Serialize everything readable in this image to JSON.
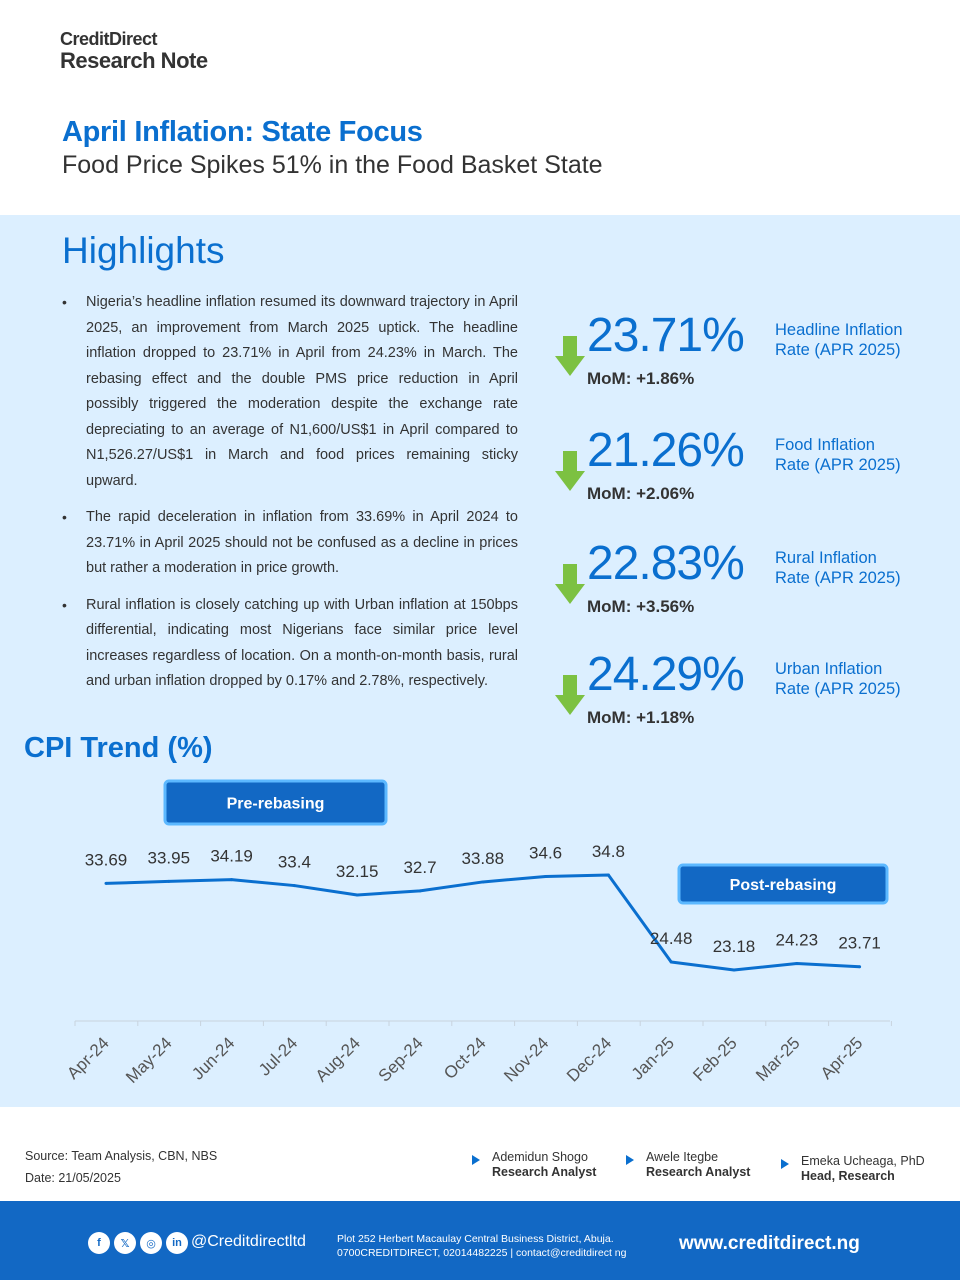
{
  "brand": {
    "line1": "CreditDirect",
    "line2": "Research Note"
  },
  "title": "April Inflation: State Focus",
  "subtitle": "Food Price Spikes 51% in the Food Basket State",
  "highlights": {
    "heading": "Highlights",
    "bullet_symbol": "•",
    "bullets": [
      "Nigeria’s headline inflation resumed its downward trajectory in April 2025, an improvement from March 2025 uptick. The headline inflation dropped to 23.71% in April from 24.23% in March. The rebasing effect and the double PMS price reduction in April possibly triggered the moderation despite the exchange rate depreciating to an average of N1,600/US$1 in April compared to N1,526.27/US$1 in March and food prices remaining sticky upward.",
      "The rapid deceleration in inflation from 33.69% in April 2024 to 23.71% in April 2025 should not be confused as a decline in prices but rather a moderation in price growth.",
      "Rural inflation is closely catching up with Urban inflation at 150bps differential, indicating most Nigerians face similar price level increases regardless of location. On a month-on-month basis, rural and urban inflation dropped by 0.17% and 2.78%, respectively."
    ]
  },
  "stats": [
    {
      "value": "23.71%",
      "mom": "MoM: +1.86%",
      "label_line1": "Headline Inflation",
      "label_line2": "Rate (APR 2025)",
      "direction": "down",
      "arrow_color": "#7cc142"
    },
    {
      "value": "21.26%",
      "mom": "MoM: +2.06%",
      "label_line1": "Food Inflation",
      "label_line2": "Rate (APR 2025)",
      "direction": "down",
      "arrow_color": "#7cc142"
    },
    {
      "value": "22.83%",
      "mom": "MoM: +3.56%",
      "label_line1": "Rural Inflation",
      "label_line2": "Rate (APR 2025)",
      "direction": "down",
      "arrow_color": "#7cc142"
    },
    {
      "value": "24.29%",
      "mom": "MoM: +1.18%",
      "label_line1": "Urban Inflation",
      "label_line2": "Rate (APR 2025)",
      "direction": "down",
      "arrow_color": "#7cc142"
    }
  ],
  "cpi_title": "CPI Trend (%)",
  "chart_data": {
    "type": "line",
    "title": "CPI Trend (%)",
    "categories": [
      "Apr-24",
      "May-24",
      "Jun-24",
      "Jul-24",
      "Aug-24",
      "Sep-24",
      "Oct-24",
      "Nov-24",
      "Dec-24",
      "Jan-25",
      "Feb-25",
      "Mar-25",
      "Apr-25"
    ],
    "series": [
      {
        "values": [
          33.69,
          33.95,
          34.19,
          33.4,
          32.15,
          32.7,
          33.88,
          34.6,
          34.8,
          24.48,
          23.18,
          24.23,
          23.71
        ]
      }
    ],
    "data_labels": [
      "33.69",
      "33.95",
      "34.19",
      "33.4",
      "32.15",
      "32.7",
      "33.88",
      "34.6",
      "34.8",
      "24.48",
      "23.18",
      "24.23",
      "23.71"
    ],
    "annotations": [
      "Pre-rebasing",
      "Post-rebasing"
    ],
    "line_color": "#0a6fcf",
    "grid": false
  },
  "footer_info": {
    "source": "Source: Team Analysis, CBN, NBS",
    "date": "Date: 21/05/2025",
    "analysts": [
      {
        "name": "Ademidun Shogo",
        "role": "Research Analyst"
      },
      {
        "name": "Awele Itegbe",
        "role": "Research Analyst"
      },
      {
        "name": "Emeka Ucheaga, PhD",
        "role": "Head, Research"
      }
    ]
  },
  "footer": {
    "social_icons": [
      {
        "name": "facebook-icon",
        "glyph": "f"
      },
      {
        "name": "x-icon",
        "glyph": "𝕏"
      },
      {
        "name": "instagram-icon",
        "glyph": "◎"
      },
      {
        "name": "linkedin-icon",
        "glyph": "in"
      }
    ],
    "handle": "@Creditdirectltd",
    "address_line1": "Plot 252 Herbert Macaulay Central Business District, Abuja.",
    "address_line2": "0700CREDITDIRECT, 02014482225 |  contact@creditdirect ng",
    "website": "www.creditdirect.ng"
  },
  "colors": {
    "brand_blue": "#0a6fcf",
    "band_bg": "#dcefff",
    "footer_bg": "#1268c4",
    "arrow_green": "#7cc142"
  }
}
